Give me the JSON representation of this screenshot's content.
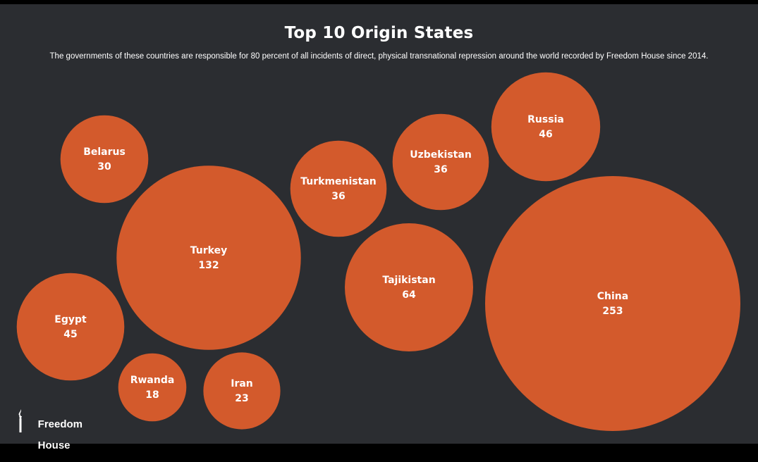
{
  "chart_data": {
    "type": "bubble",
    "title": "Top 10 Origin States",
    "subtitle": "The governments of these countries are responsible for 80 percent of all incidents of direct, physical transnational repression around the world recorded by Freedom House since 2014.",
    "categories": [
      "Belarus",
      "Turkey",
      "Egypt",
      "Rwanda",
      "Iran",
      "Turkmenistan",
      "Uzbekistan",
      "Russia",
      "Tajikistan",
      "China"
    ],
    "values": [
      30,
      132,
      45,
      18,
      23,
      36,
      36,
      46,
      64,
      253
    ],
    "bubble_color": "#d35a2c",
    "background_color": "#2b2d31"
  },
  "logo": {
    "line1": "Freedom",
    "line2": "House",
    "name": "freedom-house-logo"
  }
}
